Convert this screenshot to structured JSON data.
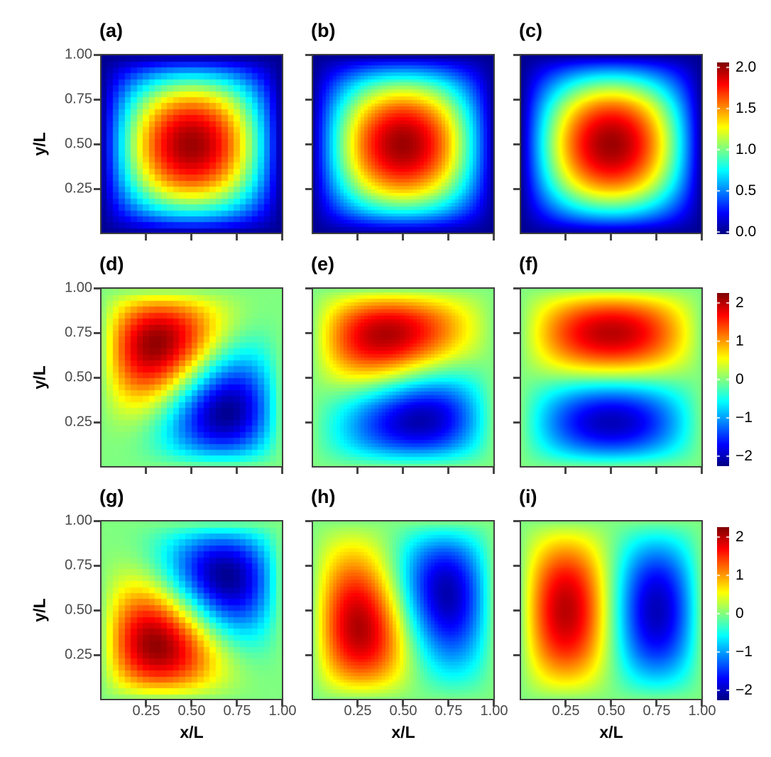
{
  "chart_data": {
    "type": "heatmap",
    "layout": "3x3 facet grid with one shared vertical colorbar per row",
    "colormap": "jet",
    "field_formula": "z(x,y) = sum_k coeff_k * 2*sin(nx_k*pi*x/L)*sin(ny_k*pi*y/L) on unit square",
    "axes": {
      "x_label": "x/L",
      "y_label": "y/L",
      "x_tick_labels": [
        "0.25",
        "0.50",
        "0.75",
        "1.00"
      ],
      "x_tick_values": [
        0.25,
        0.5,
        0.75,
        1.0
      ],
      "y_tick_labels": [
        "1.00",
        "0.75",
        "0.50",
        "0.25"
      ],
      "y_tick_values": [
        1.0,
        0.75,
        0.5,
        0.25
      ],
      "x_range": [
        0,
        1
      ],
      "y_range": [
        0,
        1
      ]
    },
    "rows": [
      {
        "colorbar": {
          "tick_labels": [
            "2.0",
            "1.5",
            "1.0",
            "0.5",
            "0.0"
          ],
          "tick_values": [
            2.0,
            1.5,
            1.0,
            0.5,
            0.0
          ],
          "value_range": [
            -0.03,
            2.06
          ]
        }
      },
      {
        "colorbar": {
          "tick_labels": [
            "2",
            "1",
            "0",
            "−1",
            "−2"
          ],
          "tick_values": [
            2,
            1,
            0,
            -1,
            -2
          ],
          "value_range": [
            -2.26,
            2.26
          ]
        }
      },
      {
        "colorbar": {
          "tick_labels": [
            "2",
            "1",
            "0",
            "−1",
            "−2"
          ],
          "tick_values": [
            2,
            1,
            0,
            -1,
            -2
          ],
          "value_range": [
            -2.26,
            2.26
          ]
        }
      }
    ],
    "panels": [
      {
        "label": "(a)",
        "row": 0,
        "col": 0,
        "grid_n": 30,
        "modes": [
          {
            "nx": 1,
            "ny": 1,
            "coeff": 1
          }
        ]
      },
      {
        "label": "(b)",
        "row": 0,
        "col": 1,
        "grid_n": 52,
        "modes": [
          {
            "nx": 1,
            "ny": 1,
            "coeff": 1
          }
        ]
      },
      {
        "label": "(c)",
        "row": 0,
        "col": 2,
        "grid_n": 128,
        "modes": [
          {
            "nx": 1,
            "ny": 1,
            "coeff": 1
          }
        ]
      },
      {
        "label": "(d)",
        "row": 1,
        "col": 0,
        "grid_n": 30,
        "modes": [
          {
            "nx": 1,
            "ny": 2,
            "coeff": -0.7071
          },
          {
            "nx": 2,
            "ny": 1,
            "coeff": 0.7071
          }
        ]
      },
      {
        "label": "(e)",
        "row": 1,
        "col": 1,
        "grid_n": 52,
        "modes": [
          {
            "nx": 1,
            "ny": 2,
            "coeff": -0.9703
          },
          {
            "nx": 2,
            "ny": 1,
            "coeff": 0.2419
          }
        ]
      },
      {
        "label": "(f)",
        "row": 1,
        "col": 2,
        "grid_n": 128,
        "modes": [
          {
            "nx": 1,
            "ny": 2,
            "coeff": -1
          }
        ]
      },
      {
        "label": "(g)",
        "row": 2,
        "col": 0,
        "grid_n": 30,
        "modes": [
          {
            "nx": 2,
            "ny": 1,
            "coeff": 0.7071
          },
          {
            "nx": 1,
            "ny": 2,
            "coeff": 0.7071
          }
        ]
      },
      {
        "label": "(h)",
        "row": 2,
        "col": 1,
        "grid_n": 52,
        "modes": [
          {
            "nx": 2,
            "ny": 1,
            "coeff": 0.9703
          },
          {
            "nx": 1,
            "ny": 2,
            "coeff": 0.2419
          }
        ]
      },
      {
        "label": "(i)",
        "row": 2,
        "col": 2,
        "grid_n": 128,
        "modes": [
          {
            "nx": 2,
            "ny": 1,
            "coeff": 1
          }
        ]
      }
    ],
    "styles": {
      "background": "#ffffff",
      "panel_border_color": "#3e3e3e",
      "tick_mark_color": "#454545",
      "tick_label_color": "#4a4a4a",
      "axis_title_color": "#000000",
      "panel_label_color": "#000000",
      "colorbar_label_color": "#000000",
      "colorbar_tick_mark_color": "#ffffff",
      "jet_anchor_colors": [
        "#000080",
        "#0000ff",
        "#00ffff",
        "#80ff80",
        "#ffff00",
        "#ff0000",
        "#800000"
      ]
    }
  }
}
